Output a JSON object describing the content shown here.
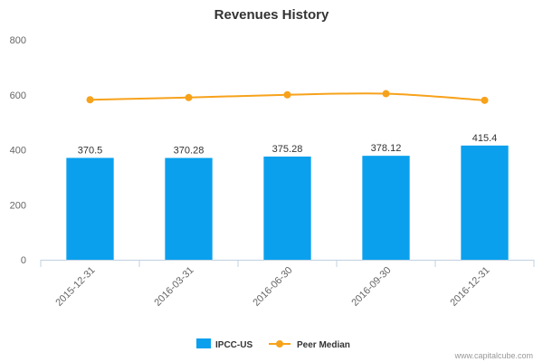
{
  "chart_data": {
    "type": "bar",
    "title": "Revenues History",
    "xlabel": "",
    "ylabel": "",
    "ylim": [
      0,
      800
    ],
    "yticks": [
      0,
      200,
      400,
      600,
      800
    ],
    "grid": false,
    "categories": [
      "2015-12-31",
      "2016-03-31",
      "2016-06-30",
      "2016-09-30",
      "2016-12-31"
    ],
    "series": [
      {
        "name": "IPCC-US",
        "type": "bar",
        "color": "#0aa0ee",
        "values": [
          370.5,
          370.28,
          375.28,
          378.12,
          415.4
        ],
        "labels": [
          "370.5",
          "370.28",
          "375.28",
          "378.12",
          "415.4"
        ]
      },
      {
        "name": "Peer Median",
        "type": "line",
        "color": "#f7a21b",
        "values": [
          582,
          590,
          600,
          604,
          580
        ]
      }
    ],
    "legend_position": "bottom-center"
  },
  "credit": "www.capitalcube.com"
}
